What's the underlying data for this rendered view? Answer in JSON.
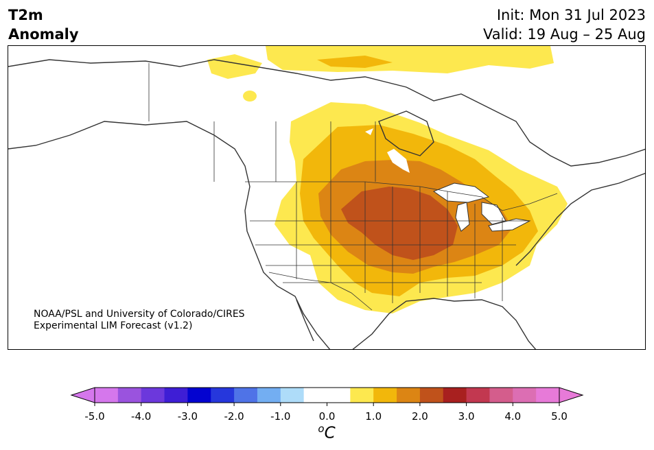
{
  "title": {
    "line1": "T2m",
    "line2": "Anomaly"
  },
  "header": {
    "init": "Init: Mon 31 Jul 2023",
    "valid": "Valid: 19 Aug – 25 Aug"
  },
  "credit": {
    "line1": "NOAA/PSL and University of Colorado/CIRES",
    "line2": "Experimental LIM Forecast (v1.2)"
  },
  "colorbar": {
    "colors": [
      "#d577ec",
      "#9a53de",
      "#6c38dc",
      "#3e1ed5",
      "#0303d0",
      "#2637dc",
      "#4f73e7",
      "#73aef2",
      "#aedcf9",
      "#ffffff",
      "#ffffff",
      "#fde84f",
      "#f2b70b",
      "#dc8514",
      "#c0521b",
      "#a8201f",
      "#c23850",
      "#d45d8c",
      "#dc6eb3",
      "#e77ad8"
    ],
    "low_extend_color": "#d577ec",
    "high_extend_color": "#e77ad8",
    "ticks": [
      "-5.0",
      "-4.0",
      "-3.0",
      "-2.0",
      "-1.0",
      "0.0",
      "1.0",
      "2.0",
      "3.0",
      "4.0",
      "5.0"
    ],
    "unit_base": "C",
    "unit_sup": "o"
  },
  "anomaly_colors": {
    "c1": "#fde84f",
    "c2": "#f2b70b",
    "c3": "#dc8514",
    "c4": "#c0521b"
  }
}
